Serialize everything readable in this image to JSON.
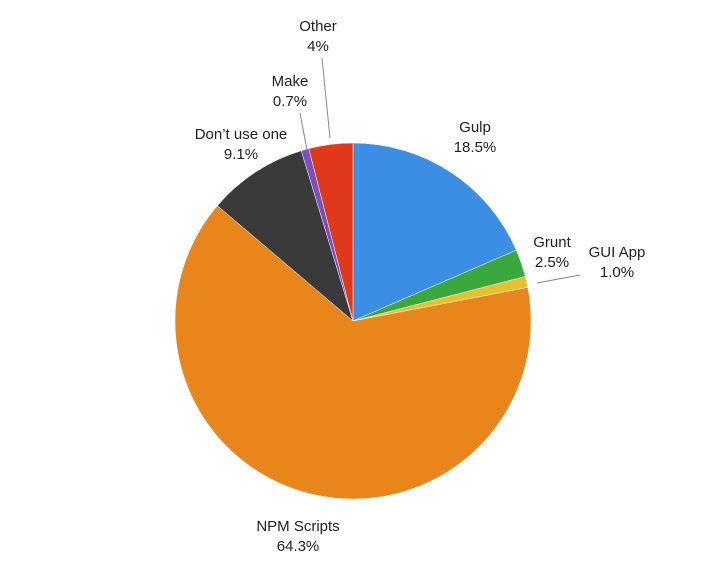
{
  "chart_data": {
    "type": "pie",
    "categories": [
      "Gulp",
      "Grunt",
      "GUI App",
      "NPM Scripts",
      "Don’t use one",
      "Make",
      "Other"
    ],
    "values": [
      18.5,
      2.5,
      1.0,
      64.3,
      9.1,
      0.7,
      4
    ],
    "value_labels": [
      "18.5%",
      "2.5%",
      "1.0%",
      "64.3%",
      "9.1%",
      "0.7%",
      "4%"
    ],
    "colors": [
      "#3b8ee4",
      "#3aa83c",
      "#e6c12c",
      "#e8861c",
      "#3a3a3a",
      "#7b4fc0",
      "#e0381a"
    ]
  }
}
